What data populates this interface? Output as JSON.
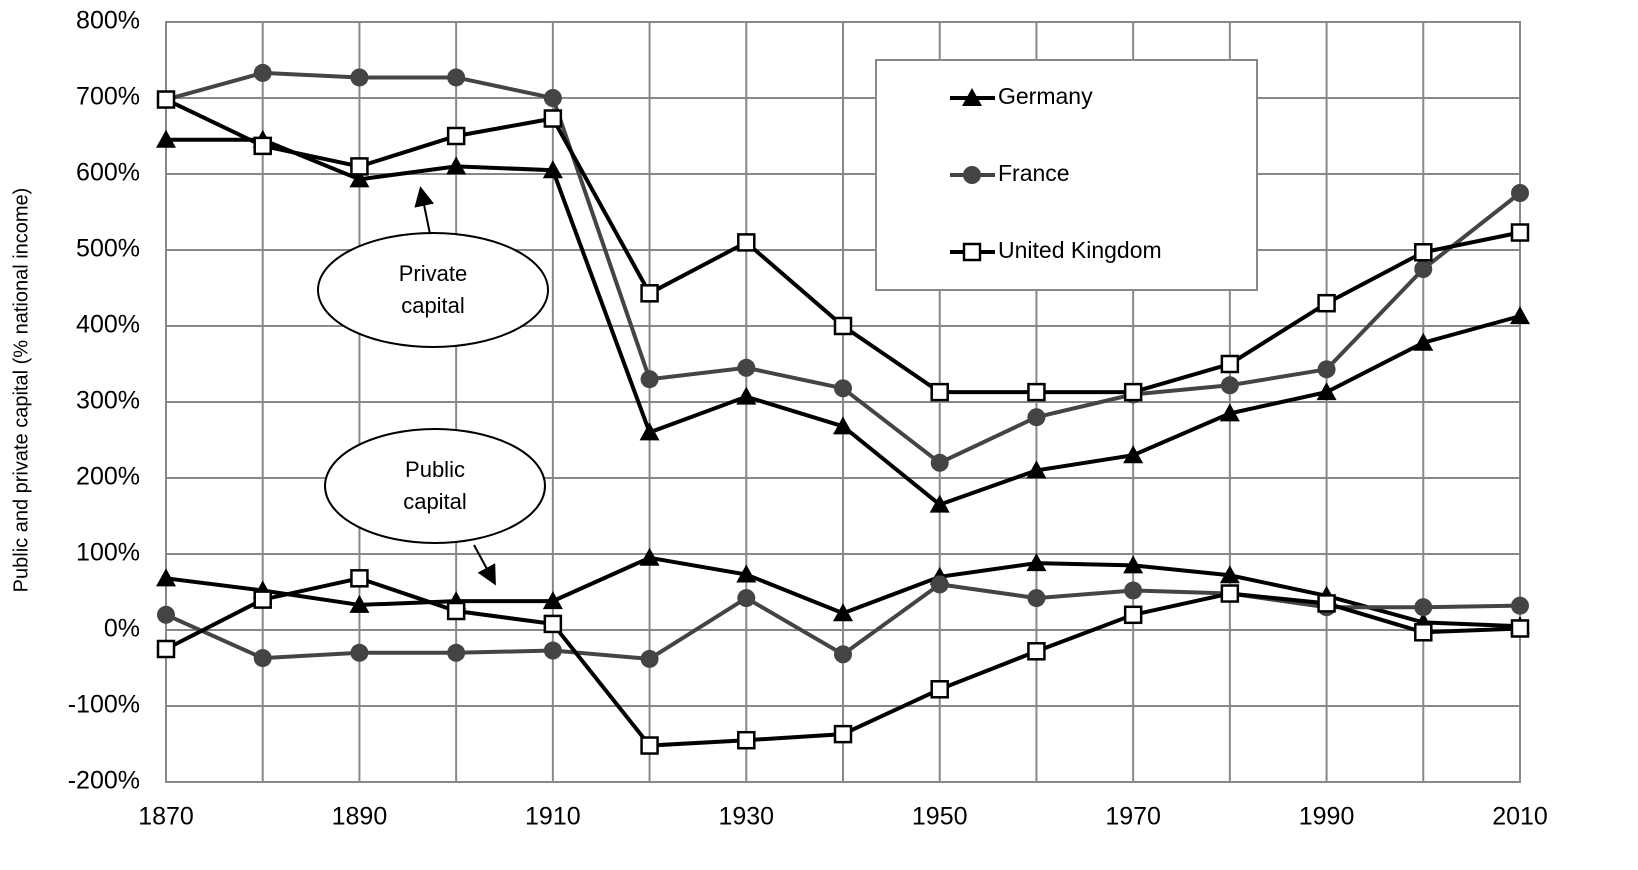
{
  "chart_data": {
    "type": "line",
    "ylabel": "Public and private capital (% national income)",
    "x": [
      1870,
      1880,
      1890,
      1900,
      1910,
      1920,
      1930,
      1940,
      1950,
      1960,
      1970,
      1980,
      1990,
      2000,
      2010
    ],
    "xlim": [
      1870,
      2010
    ],
    "xticks": [
      1870,
      1890,
      1910,
      1930,
      1950,
      1970,
      1990,
      2010
    ],
    "ylim": [
      -200,
      800
    ],
    "yticks": [
      {
        "value": -200,
        "label": "-200%"
      },
      {
        "value": -100,
        "label": "-100%"
      },
      {
        "value": 0,
        "label": "0%"
      },
      {
        "value": 100,
        "label": "100%"
      },
      {
        "value": 200,
        "label": "200%"
      },
      {
        "value": 300,
        "label": "300%"
      },
      {
        "value": 400,
        "label": "400%"
      },
      {
        "value": 500,
        "label": "500%"
      },
      {
        "value": 600,
        "label": "600%"
      },
      {
        "value": 700,
        "label": "700%"
      },
      {
        "value": 800,
        "label": "800%"
      }
    ],
    "grid": true,
    "series": [
      {
        "name": "Germany",
        "color": "#000000",
        "marker": "triangle",
        "private": [
          645,
          645,
          593,
          610,
          605,
          260,
          307,
          268,
          165,
          210,
          230,
          285,
          313,
          378,
          413
        ],
        "public": [
          68,
          52,
          33,
          38,
          38,
          95,
          73,
          22,
          70,
          88,
          85,
          72,
          45,
          10,
          5
        ]
      },
      {
        "name": "France",
        "color": "#444444",
        "marker": "circle",
        "private": [
          698,
          733,
          727,
          727,
          700,
          330,
          345,
          318,
          220,
          280,
          310,
          322,
          343,
          475,
          575
        ],
        "public": [
          20,
          -37,
          -30,
          -30,
          -27,
          -38,
          42,
          -32,
          60,
          42,
          52,
          48,
          30,
          30,
          32
        ]
      },
      {
        "name": "United Kingdom",
        "color": "#000000",
        "marker": "square",
        "private": [
          698,
          637,
          610,
          650,
          673,
          443,
          510,
          400,
          313,
          313,
          313,
          350,
          430,
          497,
          523
        ],
        "public": [
          -25,
          40,
          68,
          25,
          8,
          -152,
          -145,
          -137,
          -78,
          -28,
          20,
          48,
          35,
          -3,
          2
        ]
      }
    ],
    "annotations": [
      {
        "text": "Private capital"
      },
      {
        "text": "Public capital"
      }
    ]
  }
}
